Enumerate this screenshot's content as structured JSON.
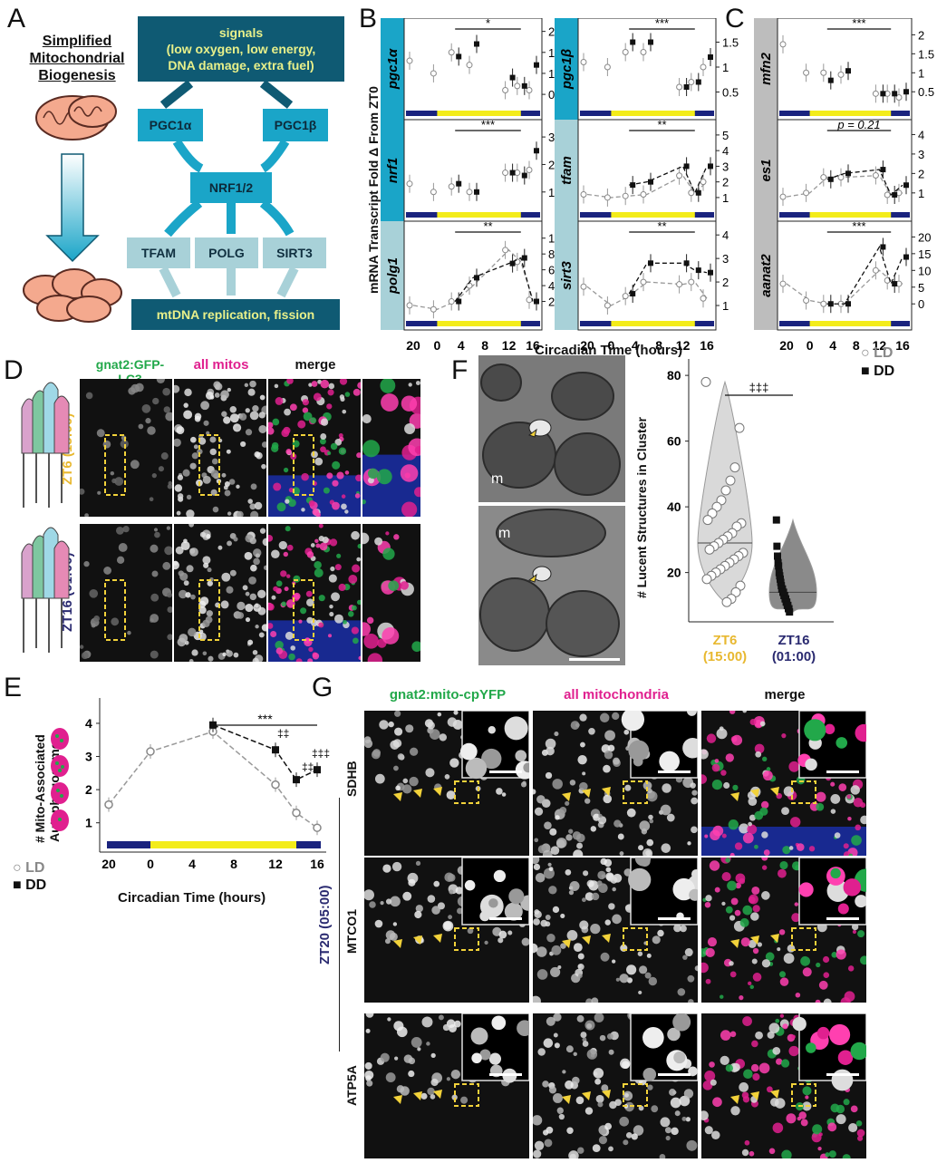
{
  "panels": {
    "A": {
      "letter": "A",
      "title_line1": "Simplified",
      "title_line2": "Mitochondrial",
      "title_line3": "Biogenesis",
      "signals_title": "signals",
      "signals_line1": "(low oxygen, low energy,",
      "signals_line2": "DNA damage, extra fuel)",
      "pgc1a": "PGC1α",
      "pgc1b": "PGC1β",
      "nrf": "NRF1/2",
      "tfam": "TFAM",
      "polg": "POLG",
      "sirt3": "SIRT3",
      "output": "mtDNA replication, fission"
    },
    "B": {
      "letter": "B",
      "ylabel": "mRNA Transcript Fold Δ From ZT0",
      "xlabel": "Circadian Time (hours)"
    },
    "C": {
      "letter": "C",
      "legend_ld": "LD",
      "legend_dd": "DD"
    },
    "D": {
      "letter": "D",
      "col1": "gnat2:GFP-LC3",
      "col2": "all mitos",
      "col3": "merge",
      "row1": "ZT6 (15:00)",
      "row2": "ZT16 (01:00)"
    },
    "E": {
      "letter": "E",
      "ylabel_line1": "# Mito-Associated",
      "ylabel_line2": "Autophagosomes",
      "xlabel": "Circadian Time (hours)",
      "legend_ld": "LD",
      "legend_dd": "DD",
      "sig_main": "***",
      "sig_12": "‡‡",
      "sig_14": "‡‡",
      "sig_16": "‡‡‡"
    },
    "F": {
      "letter": "F",
      "ylabel": "# Lucent Structures in Cluster",
      "sig": "‡‡‡",
      "label_m1": "m",
      "label_m2": "m",
      "x1_line1": "ZT6",
      "x1_line2": "(15:00)",
      "x2_line1": "ZT16",
      "x2_line2": "(01:00)"
    },
    "G": {
      "letter": "G",
      "col1": "gnat2:mito-cpYFP",
      "col2": "all mitochondria",
      "col3": "merge",
      "row1": "SDHB",
      "row2": "MTCO1",
      "row3": "ATP5A",
      "time": "ZT20 (05:00)"
    }
  },
  "colors": {
    "dark": "#0f5a73",
    "mid": "#1aa5c8",
    "light": "#a8d1d8",
    "yellow_text": "#e8f08a",
    "green_label": "#22a84a",
    "magenta_label": "#e0208f",
    "zt6": "#e8b830",
    "zt16": "#2a2a70"
  },
  "chart_data": [
    {
      "type": "scatter",
      "gene": "pgc1α",
      "x": [
        20,
        0,
        3,
        6,
        12,
        14,
        16
      ],
      "series": [
        {
          "name": "LD",
          "values": [
            1.3,
            1.0,
            1.5,
            1.2,
            0.6,
            0.7,
            0.6
          ]
        },
        {
          "name": "DD",
          "values": [
            null,
            null,
            1.4,
            1.7,
            0.9,
            0.7,
            1.2
          ]
        }
      ],
      "yticks": [
        0.5,
        1.0,
        1.5,
        2.0
      ],
      "ylim": [
        0.2,
        2.1
      ],
      "sig": "*"
    },
    {
      "type": "scatter",
      "gene": "pgc1β",
      "x": [
        20,
        0,
        3,
        6,
        12,
        14,
        16
      ],
      "series": [
        {
          "name": "LD",
          "values": [
            1.1,
            1.0,
            1.3,
            1.3,
            0.6,
            0.7,
            1.0
          ]
        },
        {
          "name": "DD",
          "values": [
            null,
            null,
            1.5,
            1.5,
            0.6,
            0.7,
            1.2
          ]
        }
      ],
      "yticks": [
        0.5,
        1.0,
        1.5
      ],
      "ylim": [
        0.2,
        1.8
      ],
      "sig": "***"
    },
    {
      "type": "scatter",
      "gene": "mfn2",
      "x": [
        20,
        0,
        3,
        6,
        12,
        14,
        16
      ],
      "series": [
        {
          "name": "LD",
          "values": [
            1.75,
            1.0,
            1.0,
            0.95,
            0.45,
            0.45,
            0.35
          ]
        },
        {
          "name": "DD",
          "values": [
            null,
            null,
            0.8,
            1.05,
            0.45,
            0.45,
            0.5
          ]
        }
      ],
      "yticks": [
        0.5,
        1.0,
        1.5,
        2.0
      ],
      "ylim": [
        0.1,
        2.2
      ],
      "sig": "***"
    },
    {
      "type": "scatter",
      "gene": "nrf1",
      "x": [
        20,
        0,
        3,
        6,
        12,
        14,
        16
      ],
      "series": [
        {
          "name": "LD",
          "values": [
            1.3,
            1.0,
            1.2,
            1.0,
            1.7,
            1.7,
            1.8
          ]
        },
        {
          "name": "DD",
          "values": [
            null,
            null,
            1.3,
            1.0,
            1.7,
            1.6,
            2.5
          ]
        }
      ],
      "yticks": [
        1,
        2,
        3
      ],
      "ylim": [
        0.4,
        3.3
      ],
      "sig": "***"
    },
    {
      "type": "line",
      "gene": "tfam",
      "x": [
        20,
        0,
        3,
        6,
        12,
        14,
        16
      ],
      "series": [
        {
          "name": "LD",
          "values": [
            1.2,
            1.0,
            1.1,
            1.2,
            2.4,
            1.3,
            2.0
          ]
        },
        {
          "name": "DD",
          "values": [
            null,
            null,
            1.8,
            2.0,
            3.0,
            1.3,
            3.0
          ]
        }
      ],
      "yticks": [
        1,
        2,
        3,
        4,
        5
      ],
      "ylim": [
        0.3,
        5.4
      ],
      "sig": "**"
    },
    {
      "type": "line",
      "gene": "es1",
      "x": [
        20,
        0,
        3,
        6,
        12,
        14,
        16
      ],
      "series": [
        {
          "name": "LD",
          "values": [
            0.8,
            1.0,
            1.8,
            1.8,
            1.9,
            0.9,
            1.0
          ]
        },
        {
          "name": "DD",
          "values": [
            null,
            null,
            1.7,
            2.0,
            2.2,
            0.9,
            1.4
          ]
        }
      ],
      "yticks": [
        1,
        2,
        3,
        4
      ],
      "ylim": [
        0.2,
        4.3
      ],
      "sig": "p = 0.21"
    },
    {
      "type": "line",
      "gene": "polg1",
      "x": [
        20,
        0,
        3,
        6,
        12,
        14,
        16
      ],
      "series": [
        {
          "name": "LD",
          "values": [
            1.5,
            1.0,
            2.0,
            4.0,
            8.5,
            7.0,
            2.2
          ]
        },
        {
          "name": "DD",
          "values": [
            null,
            null,
            2.0,
            5.0,
            6.8,
            7.5,
            2.0
          ]
        }
      ],
      "yticks": [
        2,
        4,
        6,
        8,
        10
      ],
      "ylim": [
        0,
        11
      ],
      "sig": "**"
    },
    {
      "type": "line",
      "gene": "sirt3",
      "x": [
        20,
        0,
        3,
        6,
        12,
        14,
        16
      ],
      "series": [
        {
          "name": "LD",
          "values": [
            1.8,
            1.0,
            1.4,
            2.0,
            1.9,
            2.0,
            1.3
          ]
        },
        {
          "name": "DD",
          "values": [
            null,
            null,
            1.5,
            2.8,
            2.8,
            2.5,
            2.4
          ]
        }
      ],
      "yticks": [
        1,
        2,
        3,
        4
      ],
      "ylim": [
        0.5,
        4.2
      ],
      "sig": "**"
    },
    {
      "type": "line",
      "gene": "aanat2",
      "x": [
        20,
        0,
        3,
        6,
        12,
        14,
        16
      ],
      "series": [
        {
          "name": "LD",
          "values": [
            6,
            1,
            0,
            0,
            10,
            7,
            6
          ]
        },
        {
          "name": "DD",
          "values": [
            null,
            null,
            0,
            0,
            17,
            6,
            14
          ]
        }
      ],
      "yticks": [
        0,
        5,
        10,
        15,
        20
      ],
      "ylim": [
        -4,
        22
      ],
      "sig": "***"
    },
    {
      "type": "line",
      "panel": "E",
      "x": [
        20,
        0,
        6,
        12,
        14,
        16
      ],
      "series": [
        {
          "name": "LD",
          "values": [
            1.55,
            3.15,
            3.75,
            2.15,
            1.3,
            0.85
          ]
        },
        {
          "name": "DD",
          "values": [
            null,
            null,
            3.95,
            3.2,
            2.3,
            2.6
          ]
        }
      ],
      "xticks": [
        "20",
        "0",
        "4",
        "8",
        "12",
        "16"
      ],
      "yticks": [
        1,
        2,
        3,
        4
      ],
      "ylim": [
        0.5,
        4.6
      ]
    },
    {
      "type": "scatter",
      "panel": "F",
      "categories": [
        "ZT6 (15:00)",
        "ZT16 (01:00)"
      ],
      "series": [
        {
          "name": "ZT6",
          "values": [
            78,
            64,
            52,
            48,
            45,
            42,
            40,
            38,
            36,
            35,
            34,
            32,
            31,
            30,
            29,
            28,
            27,
            26,
            25,
            24,
            23,
            22,
            21,
            20,
            19,
            18,
            16,
            14,
            12,
            11
          ]
        },
        {
          "name": "ZT16",
          "values": [
            36,
            28,
            25,
            23,
            22,
            20,
            19,
            18,
            17,
            16,
            15,
            15,
            14,
            14,
            13,
            13,
            12,
            12,
            11,
            11,
            10,
            10,
            9,
            9,
            8
          ]
        }
      ],
      "yticks": [
        20,
        40,
        60,
        80
      ],
      "ylim": [
        5,
        85
      ]
    }
  ]
}
